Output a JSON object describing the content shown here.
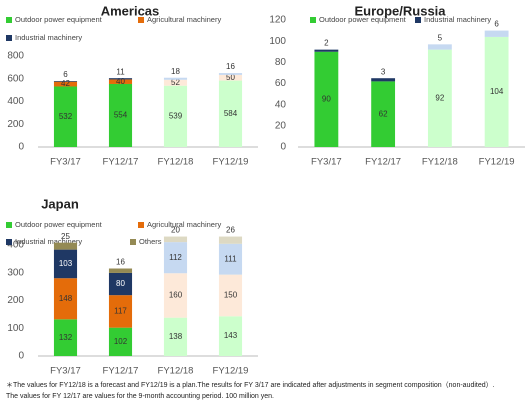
{
  "chart_data": [
    {
      "type": "stacked-bar",
      "title": "Americas",
      "categories": [
        "FY3/17",
        "FY12/17",
        "FY12/18",
        "FY12/19"
      ],
      "ylim": [
        0,
        800
      ],
      "yticks": [
        0,
        200,
        400,
        600,
        800
      ],
      "series": [
        {
          "name": "Outdoor power equipment",
          "color": "#33cc33",
          "colors": [
            "#33cc33",
            "#33cc33",
            "#ccffcc",
            "#ccffcc"
          ],
          "values": [
            532,
            554,
            539,
            584
          ]
        },
        {
          "name": "Agricultural machinery",
          "color": "#e46c0a",
          "colors": [
            "#e46c0a",
            "#e46c0a",
            "#fde9d9",
            "#fde9d9"
          ],
          "values": [
            42,
            40,
            52,
            50
          ]
        },
        {
          "name": "Industrial machinery",
          "color": "#1f3864",
          "colors": [
            "#1f3864",
            "#1f3864",
            "#c6d9f1",
            "#c6d9f1"
          ],
          "values": [
            6,
            11,
            18,
            16
          ]
        }
      ]
    },
    {
      "type": "stacked-bar",
      "title": "Europe/Russia",
      "categories": [
        "FY3/17",
        "FY12/17",
        "FY12/18",
        "FY12/19"
      ],
      "ylim": [
        0,
        120
      ],
      "yticks": [
        0,
        20,
        40,
        60,
        80,
        100,
        120
      ],
      "series": [
        {
          "name": "Outdoor power equipment",
          "color": "#33cc33",
          "colors": [
            "#33cc33",
            "#33cc33",
            "#ccffcc",
            "#ccffcc"
          ],
          "values": [
            90,
            62,
            92,
            104
          ]
        },
        {
          "name": "Industrial machinery",
          "color": "#1f3864",
          "colors": [
            "#1f3864",
            "#1f3864",
            "#c6d9f1",
            "#c6d9f1"
          ],
          "values": [
            2,
            3,
            5,
            6
          ]
        }
      ]
    },
    {
      "type": "stacked-bar",
      "title": "Japan",
      "categories": [
        "FY3/17",
        "FY12/17",
        "FY12/18",
        "FY12/19"
      ],
      "ylim": [
        0,
        450
      ],
      "yticks": [
        0,
        100,
        200,
        300,
        400
      ],
      "series": [
        {
          "name": "Outdoor power equipment",
          "color": "#33cc33",
          "colors": [
            "#33cc33",
            "#33cc33",
            "#ccffcc",
            "#ccffcc"
          ],
          "values": [
            132,
            102,
            138,
            143
          ]
        },
        {
          "name": "Agricultural machinery",
          "color": "#e46c0a",
          "colors": [
            "#e46c0a",
            "#e46c0a",
            "#fde9d9",
            "#fde9d9"
          ],
          "values": [
            148,
            117,
            160,
            150
          ]
        },
        {
          "name": "Industrial machinery",
          "color": "#1f3864",
          "colors": [
            "#1f3864",
            "#1f3864",
            "#c6d9f1",
            "#c6d9f1"
          ],
          "values": [
            103,
            80,
            112,
            111
          ]
        },
        {
          "name": "Others",
          "color": "#948a54",
          "colors": [
            "#948a54",
            "#948a54",
            "#ddd9c3",
            "#ddd9c3"
          ],
          "values": [
            25,
            16,
            20,
            26
          ]
        }
      ]
    }
  ],
  "footnote": [
    "＊The values for FY12/18 is a forecast and FY12/19 is a plan.The results for FY 3/17 are indicated after adjustments in segment composition（non-audited）.",
    "The values for FY 12/17 are values for the 9-month accounting period. 100 million yen."
  ]
}
